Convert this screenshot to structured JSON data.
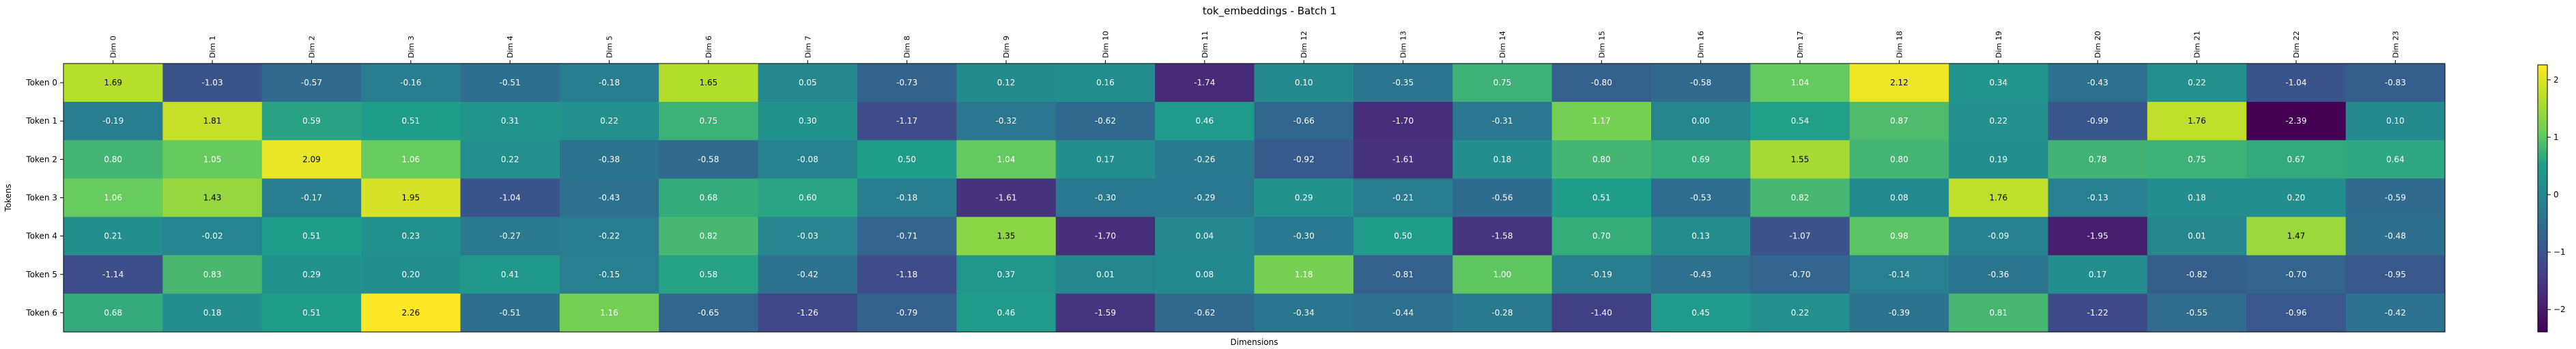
{
  "chart_data": {
    "type": "heatmap",
    "title": "tok_embeddings - Batch 1",
    "xlabel": "Dimensions",
    "ylabel": "Tokens",
    "x_labels": [
      "Dim 0",
      "Dim 1",
      "Dim 2",
      "Dim 3",
      "Dim 4",
      "Dim 5",
      "Dim 6",
      "Dim 7",
      "Dim 8",
      "Dim 9",
      "Dim 10",
      "Dim 11",
      "Dim 12",
      "Dim 13",
      "Dim 14",
      "Dim 15",
      "Dim 16",
      "Dim 17",
      "Dim 18",
      "Dim 19",
      "Dim 20",
      "Dim 21",
      "Dim 22",
      "Dim 23"
    ],
    "y_labels": [
      "Token 0",
      "Token 1",
      "Token 2",
      "Token 3",
      "Token 4",
      "Token 5",
      "Token 6"
    ],
    "values": [
      [
        1.69,
        -1.03,
        -0.57,
        -0.16,
        -0.51,
        -0.18,
        1.65,
        0.05,
        -0.73,
        0.12,
        0.16,
        -1.74,
        0.1,
        -0.35,
        0.75,
        -0.8,
        -0.58,
        1.04,
        2.12,
        0.34,
        -0.43,
        0.22,
        -1.04,
        -0.83
      ],
      [
        -0.19,
        1.81,
        0.59,
        0.51,
        0.31,
        0.22,
        0.75,
        0.3,
        -1.17,
        -0.32,
        -0.62,
        0.46,
        -0.66,
        -1.7,
        -0.31,
        1.17,
        -0.0,
        0.54,
        0.87,
        0.22,
        -0.99,
        1.76,
        -2.39,
        0.1
      ],
      [
        0.8,
        1.05,
        2.09,
        1.06,
        0.22,
        -0.38,
        -0.58,
        -0.08,
        0.5,
        1.04,
        0.17,
        -0.26,
        -0.92,
        -1.61,
        0.18,
        0.8,
        0.69,
        1.55,
        0.8,
        0.19,
        0.78,
        0.75,
        0.67,
        0.64
      ],
      [
        1.06,
        1.43,
        -0.17,
        1.95,
        -1.04,
        -0.43,
        0.68,
        0.6,
        -0.18,
        -1.61,
        -0.3,
        -0.29,
        0.29,
        -0.21,
        -0.56,
        0.51,
        -0.53,
        0.82,
        0.08,
        1.76,
        -0.13,
        0.18,
        0.2,
        -0.59
      ],
      [
        0.21,
        -0.02,
        0.51,
        0.23,
        -0.27,
        -0.22,
        0.82,
        -0.03,
        -0.71,
        1.35,
        -1.7,
        0.04,
        -0.3,
        0.5,
        -1.58,
        0.7,
        0.13,
        -1.07,
        0.98,
        -0.09,
        -1.95,
        0.01,
        1.47,
        -0.48
      ],
      [
        -1.14,
        0.83,
        0.29,
        0.2,
        0.41,
        -0.15,
        0.58,
        -0.42,
        -1.18,
        0.37,
        0.01,
        0.08,
        1.18,
        -0.81,
        1.0,
        -0.19,
        -0.43,
        -0.7,
        -0.14,
        -0.36,
        0.17,
        -0.82,
        -0.7,
        -0.95
      ],
      [
        0.68,
        0.18,
        0.51,
        2.26,
        -0.51,
        1.16,
        -0.65,
        -1.26,
        -0.79,
        0.46,
        -1.59,
        -0.62,
        -0.34,
        -0.44,
        -0.28,
        -1.4,
        0.45,
        0.22,
        -0.39,
        0.81,
        -1.22,
        -0.55,
        -0.96,
        -0.42
      ]
    ],
    "vmin": -2.39,
    "vmax": 2.26,
    "colormap": "viridis",
    "colorbar_ticks": [
      2,
      1,
      0,
      -1,
      -2
    ],
    "colorbar_tick_labels": [
      "2",
      "1",
      "0",
      "−1",
      "−2"
    ]
  }
}
